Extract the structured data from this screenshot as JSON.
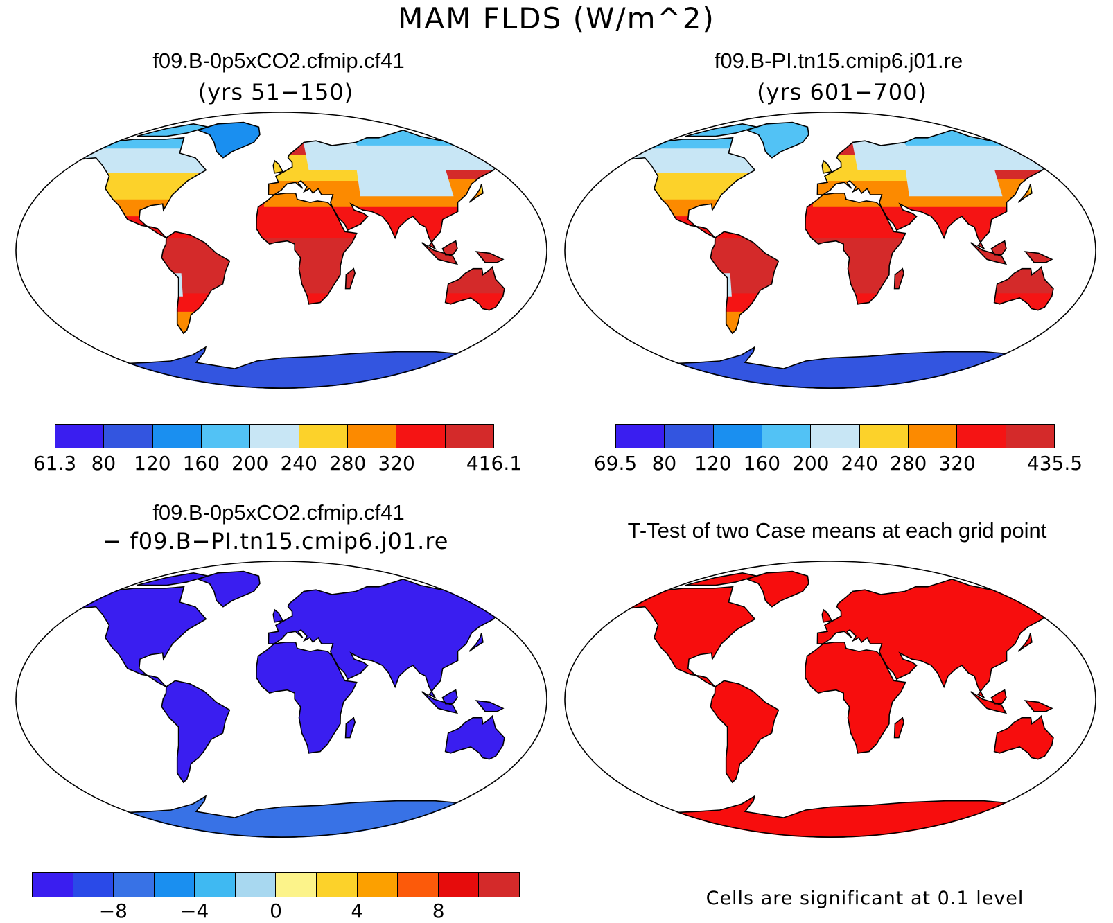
{
  "figure": {
    "title": "MAM FLDS (W/m^2)"
  },
  "panels": [
    {
      "title": "f09.B-0p5xCO2.cfmip.cf41",
      "subtitle": "(yrs 51−150)",
      "scheme": "test"
    },
    {
      "title": "f09.B-PI.tn15.cmip6.j01.re",
      "subtitle": "(yrs 601−700)",
      "scheme": "control"
    },
    {
      "title": "f09.B-0p5xCO2.cfmip.cf41",
      "subtitle": "− f09.B−PI.tn15.cmip6.j01.re",
      "scheme": "diff"
    },
    {
      "title": "T-Test of two Case means at each grid point",
      "subtitle": "",
      "scheme": "ttest"
    }
  ],
  "colorbars": {
    "test": {
      "colors": [
        "#3a1ef0",
        "#3355e0",
        "#1a8ff0",
        "#52c2f5",
        "#c8e6f5",
        "#fcd22a",
        "#fc8a00",
        "#f51414",
        "#d42a2a"
      ],
      "labels": [
        "61.3",
        "80",
        "120",
        "160",
        "200",
        "240",
        "280",
        "320",
        "416.1"
      ],
      "label_edges": [
        0,
        1,
        2,
        3,
        4,
        5,
        6,
        7,
        9
      ]
    },
    "control": {
      "colors": [
        "#3a1ef0",
        "#3355e0",
        "#1a8ff0",
        "#52c2f5",
        "#c8e6f5",
        "#fcd22a",
        "#fc8a00",
        "#f51414",
        "#d42a2a"
      ],
      "labels": [
        "69.5",
        "80",
        "120",
        "160",
        "200",
        "240",
        "280",
        "320",
        "435.5"
      ],
      "label_edges": [
        0,
        1,
        2,
        3,
        4,
        5,
        6,
        7,
        9
      ]
    },
    "diff": {
      "colors": [
        "#3a1ef0",
        "#2a4ae8",
        "#3872e6",
        "#1a8ff0",
        "#3fb9f2",
        "#a8d8f0",
        "#fcf38a",
        "#fcd22a",
        "#fca000",
        "#fc5a0a",
        "#e60c0c",
        "#d42a2a"
      ],
      "labels": [
        "−8",
        "−4",
        "0",
        "4",
        "8"
      ],
      "label_edges": [
        2,
        4,
        6,
        8,
        10
      ]
    }
  },
  "ttest_note": "Cells are significant at 0.1 level",
  "map_colors": {
    "test": {
      "north": "#c8e6f5",
      "temperate": "#fcd22a",
      "warm": "#fc8a00",
      "hot": "#f51414",
      "tropics": "#d42a2a",
      "polar": "#52c2f5",
      "antarctica": "#3355e0",
      "greenland": "#1a8ff0"
    },
    "control": {
      "north": "#c8e6f5",
      "temperate": "#fcd22a",
      "warm": "#fc8a00",
      "hot": "#f51414",
      "tropics": "#d42a2a",
      "polar": "#52c2f5",
      "antarctica": "#3355e0",
      "greenland": "#52c2f5"
    },
    "diff": {
      "north": "#3a1ef0",
      "temperate": "#3a1ef0",
      "warm": "#3a1ef0",
      "hot": "#3a1ef0",
      "tropics": "#3a1ef0",
      "polar": "#3a1ef0",
      "antarctica": "#3872e6",
      "greenland": "#3a1ef0"
    },
    "ttest": {
      "north": "#f70d0d",
      "temperate": "#f70d0d",
      "warm": "#f70d0d",
      "hot": "#f70d0d",
      "tropics": "#f70d0d",
      "polar": "#f70d0d",
      "antarctica": "#f70d0d",
      "greenland": "#f70d0d"
    }
  }
}
